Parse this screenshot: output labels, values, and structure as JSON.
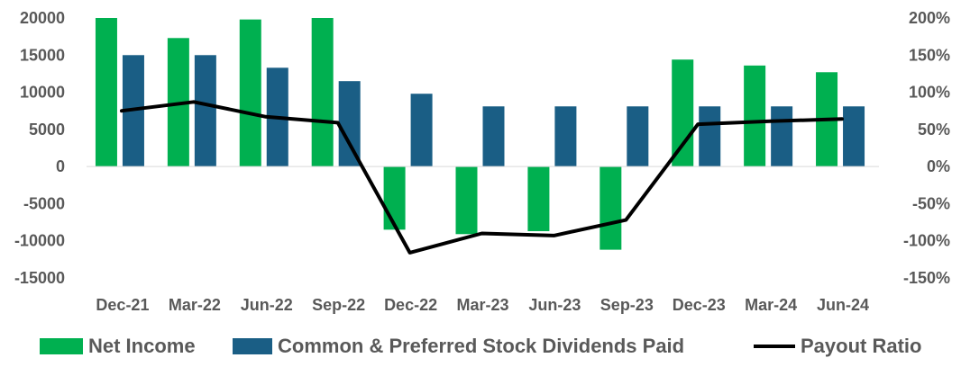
{
  "chart_data": {
    "type": "bar",
    "categories": [
      "Dec-21",
      "Mar-22",
      "Jun-22",
      "Sep-22",
      "Dec-22",
      "Mar-23",
      "Jun-23",
      "Sep-23",
      "Dec-23",
      "Mar-24",
      "Jun-24"
    ],
    "series": [
      {
        "name": "Net Income",
        "type": "bar",
        "axis": "left",
        "color": "#00B050",
        "values": [
          20000,
          17300,
          19800,
          20000,
          -8500,
          -9100,
          -8700,
          -11200,
          14400,
          13600,
          12700
        ]
      },
      {
        "name": "Common & Preferred Stock Dividends Paid",
        "type": "bar",
        "axis": "left",
        "color": "#1A5E85",
        "values": [
          15000,
          15000,
          13300,
          11500,
          9800,
          8100,
          8100,
          8100,
          8100,
          8100,
          8100
        ]
      },
      {
        "name": "Payout Ratio",
        "type": "line",
        "axis": "right",
        "color": "#000000",
        "values": [
          75,
          87,
          67,
          59,
          -116,
          -90,
          -93,
          -72,
          57,
          61,
          64
        ]
      }
    ],
    "left_axis": {
      "ylim": [
        -15000,
        20000
      ],
      "ticks": [
        20000,
        15000,
        10000,
        5000,
        0,
        -5000,
        -10000,
        -15000
      ],
      "tick_labels": [
        "20000",
        "15000",
        "10000",
        "5000",
        "0",
        "-5000",
        "-10000",
        "-15000"
      ]
    },
    "right_axis": {
      "ylim": [
        -150,
        200
      ],
      "ticks": [
        200,
        150,
        100,
        50,
        0,
        -50,
        -100,
        -150
      ],
      "tick_labels": [
        "200%",
        "150%",
        "100%",
        "50%",
        "0%",
        "-50%",
        "-100%",
        "-150%"
      ]
    },
    "legend_position": "bottom",
    "grid": false,
    "axis_color": "#D9D9D9",
    "tick_color": "#595959"
  }
}
